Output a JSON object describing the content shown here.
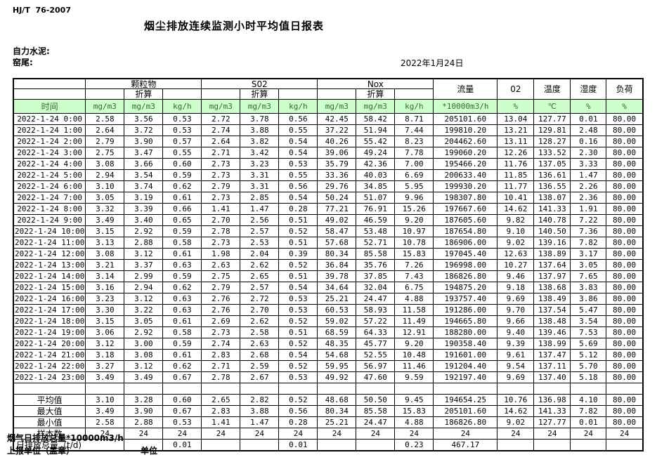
{
  "header": {
    "standard": "HJ/T  76-2007",
    "title": "烟尘排放连续监测小时平均值日报表",
    "company": "自力水泥:",
    "location": "窑尾:",
    "date": "2022年1月24日"
  },
  "table": {
    "time_label": "时间",
    "groups": {
      "particulate": "颗粒物",
      "so2": "S02",
      "nox": "Nox",
      "converted": "折算",
      "flow": "流量",
      "o2": "02",
      "temp": "温度",
      "humidity": "湿度",
      "load": "负荷"
    },
    "units": [
      "mg/m3",
      "mg/m3",
      "kg/h",
      "mg/m3",
      "mg/m3",
      "kg/h",
      "mg/m3",
      "mg/m3",
      "kg/h",
      "*10000m3/h",
      "%",
      "℃",
      "%",
      "%"
    ],
    "rows": [
      {
        "time": "2022-1-24 0:00",
        "values": [
          "2.58",
          "3.56",
          "0.53",
          "2.72",
          "3.78",
          "0.56",
          "42.45",
          "58.42",
          "8.71",
          "205101.60",
          "13.04",
          "127.77",
          "0.01",
          "80.00"
        ]
      },
      {
        "time": "2022-1-24 1:00",
        "values": [
          "2.64",
          "3.72",
          "0.53",
          "2.74",
          "3.88",
          "0.55",
          "37.22",
          "51.94",
          "7.44",
          "199810.20",
          "13.21",
          "129.81",
          "2.48",
          "80.00"
        ]
      },
      {
        "time": "2022-1-24 2:00",
        "values": [
          "2.79",
          "3.90",
          "0.57",
          "2.64",
          "3.82",
          "0.54",
          "40.26",
          "55.42",
          "8.23",
          "204462.60",
          "13.11",
          "128.27",
          "0.16",
          "80.00"
        ]
      },
      {
        "time": "2022-1-24 3:00",
        "values": [
          "2.75",
          "3.47",
          "0.55",
          "2.71",
          "3.42",
          "0.54",
          "39.06",
          "49.24",
          "7.78",
          "199060.20",
          "12.26",
          "133.52",
          "2.30",
          "80.00"
        ]
      },
      {
        "time": "2022-1-24 4:00",
        "values": [
          "3.08",
          "3.66",
          "0.60",
          "2.73",
          "3.23",
          "0.53",
          "35.79",
          "42.36",
          "7.00",
          "195466.20",
          "11.76",
          "137.05",
          "3.33",
          "80.00"
        ]
      },
      {
        "time": "2022-1-24 5:00",
        "values": [
          "2.94",
          "3.54",
          "0.59",
          "2.73",
          "3.31",
          "0.55",
          "33.36",
          "40.03",
          "6.69",
          "200633.40",
          "11.85",
          "136.61",
          "1.47",
          "80.00"
        ]
      },
      {
        "time": "2022-1-24 6:00",
        "values": [
          "3.10",
          "3.74",
          "0.62",
          "2.79",
          "3.31",
          "0.56",
          "29.76",
          "34.85",
          "5.95",
          "199930.20",
          "11.77",
          "136.55",
          "2.26",
          "80.00"
        ]
      },
      {
        "time": "2022-1-24 7:00",
        "values": [
          "3.05",
          "3.19",
          "0.61",
          "2.73",
          "2.85",
          "0.54",
          "50.24",
          "51.07",
          "9.96",
          "198307.80",
          "10.41",
          "138.07",
          "2.36",
          "80.00"
        ]
      },
      {
        "time": "2022-1-24 8:00",
        "values": [
          "3.32",
          "3.39",
          "0.66",
          "1.41",
          "1.47",
          "0.28",
          "77.21",
          "76.91",
          "15.26",
          "197667.60",
          "14.62",
          "141.33",
          "1.91",
          "80.00"
        ]
      },
      {
        "time": "2022-1-24 9:00",
        "values": [
          "3.49",
          "3.40",
          "0.65",
          "2.70",
          "2.56",
          "0.51",
          "49.02",
          "46.59",
          "9.20",
          "187605.60",
          "9.82",
          "140.78",
          "7.22",
          "80.00"
        ]
      },
      {
        "time": "2022-1-24 10:00",
        "values": [
          "3.15",
          "2.92",
          "0.59",
          "2.78",
          "2.57",
          "0.52",
          "58.47",
          "53.48",
          "10.97",
          "187654.80",
          "9.10",
          "140.50",
          "7.36",
          "80.00"
        ]
      },
      {
        "time": "2022-1-24 11:00",
        "values": [
          "3.13",
          "2.88",
          "0.58",
          "2.73",
          "2.53",
          "0.51",
          "57.68",
          "52.71",
          "10.78",
          "186906.00",
          "9.02",
          "139.16",
          "7.82",
          "80.00"
        ]
      },
      {
        "time": "2022-1-24 12:00",
        "values": [
          "3.08",
          "3.12",
          "0.61",
          "1.98",
          "2.04",
          "0.39",
          "80.34",
          "85.58",
          "15.83",
          "197045.40",
          "12.63",
          "138.89",
          "3.17",
          "80.00"
        ]
      },
      {
        "time": "2022-1-24 13:00",
        "values": [
          "3.21",
          "3.37",
          "0.63",
          "2.63",
          "2.62",
          "0.52",
          "36.84",
          "35.76",
          "7.26",
          "196998.00",
          "10.27",
          "137.64",
          "3.05",
          "80.00"
        ]
      },
      {
        "time": "2022-1-24 14:00",
        "values": [
          "3.14",
          "2.99",
          "0.59",
          "2.75",
          "2.65",
          "0.51",
          "39.78",
          "37.85",
          "7.43",
          "186826.80",
          "9.46",
          "137.97",
          "7.65",
          "80.00"
        ]
      },
      {
        "time": "2022-1-24 15:00",
        "values": [
          "3.16",
          "2.94",
          "0.62",
          "2.79",
          "2.57",
          "0.54",
          "34.64",
          "32.04",
          "6.75",
          "194875.20",
          "9.18",
          "138.68",
          "3.83",
          "80.00"
        ]
      },
      {
        "time": "2022-1-24 16:00",
        "values": [
          "3.23",
          "3.12",
          "0.63",
          "2.76",
          "2.72",
          "0.53",
          "25.21",
          "24.47",
          "4.88",
          "193757.40",
          "9.69",
          "138.49",
          "3.86",
          "80.00"
        ]
      },
      {
        "time": "2022-1-24 17:00",
        "values": [
          "3.30",
          "3.22",
          "0.63",
          "2.76",
          "2.70",
          "0.53",
          "60.53",
          "58.93",
          "11.58",
          "191286.00",
          "9.70",
          "137.54",
          "5.47",
          "80.00"
        ]
      },
      {
        "time": "2022-1-24 18:00",
        "values": [
          "3.15",
          "3.05",
          "0.61",
          "2.69",
          "2.62",
          "0.52",
          "59.02",
          "57.22",
          "11.49",
          "194665.80",
          "9.66",
          "138.48",
          "3.54",
          "80.00"
        ]
      },
      {
        "time": "2022-1-24 19:00",
        "values": [
          "3.06",
          "2.92",
          "0.58",
          "2.73",
          "2.58",
          "0.51",
          "68.59",
          "64.33",
          "12.91",
          "188280.00",
          "9.40",
          "139.46",
          "7.53",
          "80.00"
        ]
      },
      {
        "time": "2022-1-24 20:00",
        "values": [
          "3.12",
          "3.00",
          "0.59",
          "2.74",
          "2.63",
          "0.52",
          "48.35",
          "45.77",
          "9.20",
          "190358.40",
          "9.39",
          "138.99",
          "5.69",
          "80.00"
        ]
      },
      {
        "time": "2022-1-24 21:00",
        "values": [
          "3.18",
          "3.08",
          "0.61",
          "2.83",
          "2.68",
          "0.54",
          "54.68",
          "52.55",
          "10.48",
          "191601.00",
          "9.61",
          "137.47",
          "5.12",
          "80.00"
        ]
      },
      {
        "time": "2022-1-24 22:00",
        "values": [
          "3.27",
          "3.12",
          "0.62",
          "2.71",
          "2.59",
          "0.52",
          "59.95",
          "56.97",
          "11.46",
          "191204.40",
          "9.54",
          "137.11",
          "5.70",
          "80.00"
        ]
      },
      {
        "time": "2022-1-24 23:00",
        "values": [
          "3.49",
          "3.49",
          "0.67",
          "2.78",
          "2.67",
          "0.53",
          "49.92",
          "47.60",
          "9.59",
          "192197.40",
          "9.69",
          "137.40",
          "5.18",
          "80.00"
        ]
      }
    ],
    "summary": [
      {
        "label": "平均值",
        "span2": false,
        "values": [
          "3.10",
          "3.28",
          "0.60",
          "2.65",
          "2.82",
          "0.52",
          "48.68",
          "50.50",
          "9.45",
          "194654.25",
          "10.76",
          "136.98",
          "4.10",
          "80.00"
        ]
      },
      {
        "label": "最大值",
        "span2": false,
        "values": [
          "3.49",
          "3.90",
          "0.67",
          "2.83",
          "3.88",
          "0.56",
          "80.34",
          "85.58",
          "15.83",
          "205101.60",
          "14.62",
          "141.33",
          "7.82",
          "80.00"
        ]
      },
      {
        "label": "最小值",
        "span2": false,
        "values": [
          "2.58",
          "2.88",
          "0.53",
          "1.41",
          "1.47",
          "0.28",
          "25.21",
          "24.47",
          "4.88",
          "186826.80",
          "9.02",
          "127.77",
          "0.01",
          "80.00"
        ]
      },
      {
        "label": "样本数",
        "span2": false,
        "values": [
          "24",
          "24",
          "24",
          "24",
          "24",
          "24",
          "24",
          "24",
          "24",
          "24",
          "24",
          "24",
          "24",
          "24"
        ]
      },
      {
        "label": "日排放总量（t/d)",
        "span2": true,
        "values": [
          "",
          "0.01",
          "",
          "",
          "0.01",
          "",
          "",
          "0.23",
          "467.17",
          "",
          "",
          "",
          ""
        ]
      }
    ]
  },
  "footer": {
    "line1": "烟气日排放总量*10000m3/h",
    "line2": "上报单位（盖章）",
    "line3": "单位"
  }
}
